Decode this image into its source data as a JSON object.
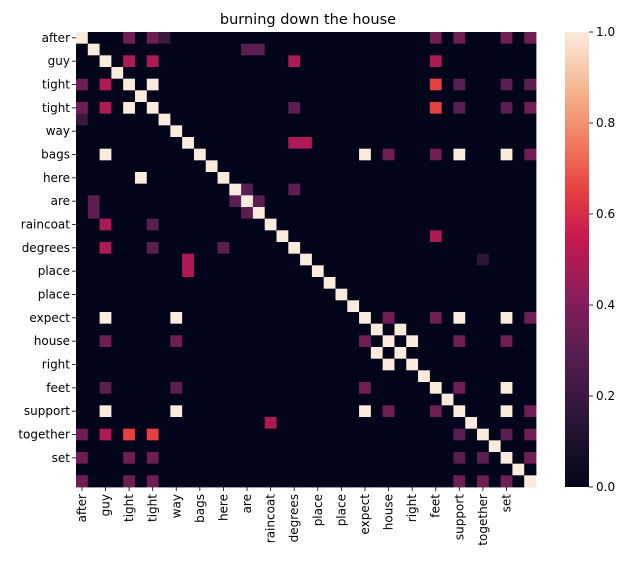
{
  "chart_data": {
    "type": "heatmap",
    "title": "burning down the house",
    "xlabel": "",
    "ylabel": "",
    "row_labels": [
      "after",
      "guy",
      "tight",
      "tight",
      "way",
      "bags",
      "here",
      "are",
      "raincoat",
      "degrees",
      "place",
      "place",
      "expect",
      "house",
      "right",
      "feet",
      "support",
      "together",
      "set"
    ],
    "col_labels": [
      "after",
      "guy",
      "tight",
      "tight",
      "way",
      "bags",
      "here",
      "are",
      "raincoat",
      "degrees",
      "place",
      "place",
      "expect",
      "house",
      "right",
      "feet",
      "support",
      "together",
      "set"
    ],
    "tokens": [
      "after",
      "",
      "guy",
      "",
      "tight",
      "",
      "tight",
      "",
      "way",
      "",
      "bags",
      "",
      "here",
      "",
      "are",
      "",
      "raincoat",
      "",
      "degrees",
      "",
      "place",
      "",
      "place",
      "",
      "expect",
      "",
      "house",
      "",
      "right",
      "",
      "feet",
      "",
      "support",
      "",
      "together",
      "",
      "set"
    ],
    "label_every": 2,
    "matrix": [
      [
        1,
        0,
        0,
        0,
        0.35,
        0,
        0.35,
        0.2,
        0,
        0,
        0,
        0,
        0,
        0,
        0,
        0,
        0,
        0,
        0,
        0,
        0,
        0,
        0,
        0,
        0,
        0,
        0,
        0,
        0,
        0,
        0.35,
        0,
        0.35,
        0,
        0,
        0,
        0.35,
        0,
        0.35
      ],
      [
        0,
        1,
        0,
        0,
        0,
        0,
        0,
        0,
        0,
        0,
        0,
        0,
        0,
        0,
        0.3,
        0.3,
        0,
        0,
        0,
        0,
        0,
        0,
        0,
        0,
        0,
        0,
        0,
        0,
        0,
        0,
        0,
        0,
        0,
        0,
        0,
        0,
        0,
        0,
        0
      ],
      [
        0,
        0,
        1,
        0,
        0.5,
        0,
        0.5,
        0,
        0,
        0,
        0,
        0,
        0,
        0,
        0,
        0,
        0,
        0,
        0.5,
        0,
        0,
        0,
        0,
        0,
        0,
        0,
        0,
        0,
        0,
        0,
        0.5,
        0,
        0,
        0,
        0,
        0,
        0,
        0,
        0
      ],
      [
        0,
        0,
        0,
        1,
        0,
        0,
        0,
        0,
        0,
        0,
        0,
        0,
        0,
        0,
        0,
        0,
        0,
        0,
        0,
        0,
        0,
        0,
        0,
        0,
        0,
        0,
        0,
        0,
        0,
        0,
        0,
        0,
        0,
        0,
        0,
        0,
        0,
        0,
        0
      ],
      [
        0.35,
        0,
        0.5,
        0,
        1,
        0,
        1,
        0,
        0,
        0,
        0,
        0,
        0,
        0,
        0,
        0,
        0,
        0,
        0,
        0,
        0,
        0,
        0,
        0,
        0,
        0,
        0,
        0,
        0,
        0,
        0.65,
        0,
        0.3,
        0,
        0,
        0,
        0.3,
        0,
        0.3
      ],
      [
        0,
        0,
        0,
        0,
        0,
        1,
        0,
        0,
        0,
        0,
        0,
        0,
        0,
        0,
        0,
        0,
        0,
        0,
        0,
        0,
        0,
        0,
        0,
        0,
        0,
        0,
        0,
        0,
        0,
        0,
        0,
        0,
        0,
        0,
        0,
        0,
        0,
        0,
        0
      ],
      [
        0.35,
        0,
        0.5,
        0,
        1,
        0,
        1,
        0,
        0,
        0,
        0,
        0,
        0,
        0,
        0,
        0,
        0,
        0,
        0.3,
        0,
        0,
        0,
        0,
        0,
        0,
        0,
        0,
        0,
        0,
        0,
        0.65,
        0,
        0.3,
        0,
        0,
        0,
        0.3,
        0,
        0.35
      ],
      [
        0.2,
        0,
        0,
        0,
        0,
        0,
        0,
        1,
        0,
        0,
        0,
        0,
        0,
        0,
        0,
        0,
        0,
        0,
        0,
        0,
        0,
        0,
        0,
        0,
        0,
        0,
        0,
        0,
        0,
        0,
        0,
        0,
        0,
        0,
        0,
        0,
        0,
        0,
        0
      ],
      [
        0,
        0,
        0,
        0,
        0,
        0,
        0,
        0,
        1,
        0,
        0,
        0,
        0,
        0,
        0,
        0,
        0,
        0,
        0,
        0,
        0,
        0,
        0,
        0,
        0,
        0,
        0,
        0,
        0,
        0,
        0,
        0,
        0,
        0,
        0,
        0,
        0,
        0,
        0
      ],
      [
        0,
        0,
        0,
        0,
        0,
        0,
        0,
        0,
        0,
        1,
        0,
        0,
        0,
        0,
        0,
        0,
        0,
        0,
        0.5,
        0.5,
        0,
        0,
        0,
        0,
        0,
        0,
        0,
        0,
        0,
        0,
        0,
        0,
        0,
        0,
        0,
        0,
        0,
        0,
        0
      ],
      [
        0,
        0,
        1,
        0,
        0,
        0,
        0,
        0,
        0,
        0,
        1,
        0,
        0,
        0,
        0,
        0,
        0,
        0,
        0,
        0,
        0,
        0,
        0,
        0,
        1,
        0,
        0.35,
        0,
        0,
        0,
        0.35,
        0,
        1,
        0,
        0,
        0,
        1,
        0,
        0.35
      ],
      [
        0,
        0,
        0,
        0,
        0,
        0,
        0,
        0,
        0,
        0,
        0,
        1,
        0,
        0,
        0,
        0,
        0,
        0,
        0,
        0,
        0,
        0,
        0,
        0,
        0,
        0,
        0,
        0,
        0,
        0,
        0,
        0,
        0,
        0,
        0,
        0,
        0,
        0,
        0
      ],
      [
        0,
        0,
        0,
        0,
        0,
        1,
        0,
        0,
        0,
        0,
        0,
        0,
        1,
        0,
        0,
        0,
        0,
        0,
        0,
        0,
        0,
        0,
        0,
        0,
        0,
        0,
        0,
        0,
        0,
        0,
        0,
        0,
        0,
        0,
        0,
        0,
        0,
        0,
        0
      ],
      [
        0,
        0,
        0,
        0,
        0,
        0,
        0,
        0,
        0,
        0,
        0,
        0,
        0,
        1,
        0.3,
        0,
        0,
        0,
        0.3,
        0,
        0,
        0,
        0,
        0,
        0,
        0,
        0,
        0,
        0,
        0,
        0,
        0,
        0,
        0,
        0,
        0,
        0,
        0,
        0
      ],
      [
        0,
        0.3,
        0,
        0,
        0,
        0,
        0,
        0,
        0,
        0,
        0,
        0,
        0,
        0.3,
        1,
        0.3,
        0,
        0,
        0,
        0,
        0,
        0,
        0,
        0,
        0,
        0,
        0,
        0,
        0,
        0,
        0,
        0,
        0,
        0,
        0,
        0,
        0,
        0,
        0
      ],
      [
        0,
        0.3,
        0,
        0,
        0,
        0,
        0,
        0,
        0,
        0,
        0,
        0,
        0,
        0,
        0.3,
        1,
        0,
        0,
        0,
        0,
        0,
        0,
        0,
        0,
        0,
        0,
        0,
        0,
        0,
        0,
        0,
        0,
        0,
        0,
        0,
        0,
        0,
        0,
        0
      ],
      [
        0,
        0,
        0.5,
        0,
        0,
        0,
        0.3,
        0,
        0,
        0,
        0,
        0,
        0,
        0,
        0,
        0,
        1,
        0,
        0,
        0,
        0,
        0,
        0,
        0,
        0,
        0,
        0,
        0,
        0,
        0,
        0,
        0,
        0,
        0,
        0,
        0,
        0,
        0,
        0
      ],
      [
        0,
        0,
        0,
        0,
        0,
        0,
        0,
        0,
        0,
        0,
        0,
        0,
        0,
        0,
        0,
        0,
        0,
        1,
        0,
        0,
        0,
        0,
        0,
        0,
        0,
        0,
        0,
        0,
        0,
        0,
        0.5,
        0,
        0,
        0,
        0,
        0,
        0,
        0,
        0
      ],
      [
        0,
        0,
        0.5,
        0,
        0,
        0,
        0.3,
        0,
        0,
        0,
        0,
        0,
        0.3,
        0,
        0,
        0,
        0,
        0,
        1,
        0,
        0,
        0,
        0,
        0,
        0,
        0,
        0,
        0,
        0,
        0,
        0,
        0,
        0,
        0,
        0,
        0,
        0,
        0,
        0
      ],
      [
        0,
        0,
        0,
        0,
        0,
        0,
        0,
        0,
        0,
        0.5,
        0,
        0,
        0,
        0,
        0,
        0,
        0,
        0,
        0,
        1,
        0,
        0,
        0,
        0,
        0,
        0,
        0,
        0,
        0,
        0,
        0,
        0,
        0,
        0,
        0.15,
        0,
        0,
        0,
        0
      ],
      [
        0,
        0,
        0,
        0,
        0,
        0,
        0,
        0,
        0,
        0.5,
        0,
        0,
        0,
        0,
        0,
        0,
        0,
        0,
        0,
        0,
        1,
        0,
        0,
        0,
        0,
        0,
        0,
        0,
        0,
        0,
        0,
        0,
        0,
        0,
        0,
        0,
        0,
        0,
        0
      ],
      [
        0,
        0,
        0,
        0,
        0,
        0,
        0,
        0,
        0,
        0,
        0,
        0,
        0,
        0,
        0,
        0,
        0,
        0,
        0,
        0,
        0,
        1,
        0,
        0,
        0,
        0,
        0,
        0,
        0,
        0,
        0,
        0,
        0,
        0,
        0,
        0,
        0,
        0,
        0
      ],
      [
        0,
        0,
        0,
        0,
        0,
        0,
        0,
        0,
        0,
        0,
        0,
        0,
        0,
        0,
        0,
        0,
        0,
        0,
        0,
        0,
        0,
        0,
        1,
        0,
        0,
        0,
        0,
        0,
        0,
        0,
        0,
        0,
        0,
        0,
        0,
        0,
        0,
        0,
        0
      ],
      [
        0,
        0,
        0,
        0,
        0,
        0,
        0,
        0,
        0,
        0,
        0,
        0,
        0,
        0,
        0,
        0,
        0,
        0,
        0,
        0,
        0,
        0,
        0,
        1,
        0,
        0,
        0,
        0,
        0,
        0,
        0,
        0,
        0,
        0,
        0,
        0,
        0,
        0,
        0
      ],
      [
        0,
        0,
        1,
        0,
        0,
        0,
        0,
        0,
        1,
        0,
        0,
        0,
        0,
        0,
        0,
        0,
        0,
        0,
        0,
        0,
        0,
        0,
        0,
        0,
        1,
        0,
        0.35,
        0,
        0,
        0,
        0.35,
        0,
        1,
        0,
        0,
        0,
        1,
        0,
        0.35
      ],
      [
        0,
        0,
        0,
        0,
        0,
        0,
        0,
        0,
        0,
        0,
        0,
        0,
        0,
        0,
        0,
        0,
        0,
        0,
        0,
        0,
        0,
        0,
        0,
        0,
        0,
        1,
        0,
        1,
        0,
        0,
        0,
        0,
        0,
        0,
        0,
        0,
        0,
        0,
        0
      ],
      [
        0,
        0,
        0.35,
        0,
        0,
        0,
        0,
        0,
        0.35,
        0,
        0,
        0,
        0,
        0,
        0,
        0,
        0,
        0,
        0,
        0,
        0,
        0,
        0,
        0,
        0.35,
        0,
        1,
        0,
        1,
        0,
        0,
        0,
        0.35,
        0,
        0,
        0,
        0.35,
        0,
        0
      ],
      [
        0,
        0,
        0,
        0,
        0,
        0,
        0,
        0,
        0,
        0,
        0,
        0,
        0,
        0,
        0,
        0,
        0,
        0,
        0,
        0,
        0,
        0,
        0,
        0,
        0,
        1,
        0,
        1,
        0,
        0,
        0,
        0,
        0,
        0,
        0,
        0,
        0,
        0,
        0
      ],
      [
        0,
        0,
        0,
        0,
        0,
        0,
        0,
        0,
        0,
        0,
        0,
        0,
        0,
        0,
        0,
        0,
        0,
        0,
        0,
        0,
        0,
        0,
        0,
        0,
        0,
        0,
        1,
        0,
        1,
        0,
        0,
        0,
        0,
        0,
        0,
        0,
        0,
        0,
        0
      ],
      [
        0,
        0,
        0,
        0,
        0,
        0,
        0,
        0,
        0,
        0,
        0,
        0,
        0,
        0,
        0,
        0,
        0,
        0,
        0,
        0,
        0,
        0,
        0,
        0,
        0,
        0,
        0,
        0,
        0,
        1,
        0,
        0,
        0,
        0,
        0,
        0,
        0,
        0,
        0
      ],
      [
        0,
        0,
        0.3,
        0,
        0,
        0,
        0,
        0,
        0.3,
        0,
        0,
        0,
        0,
        0,
        0,
        0,
        0,
        0,
        0,
        0,
        0,
        0,
        0,
        0,
        0.35,
        0,
        0,
        0,
        0,
        0,
        1,
        0,
        0.35,
        0,
        0,
        0,
        1,
        0,
        0
      ],
      [
        0,
        0,
        0,
        0,
        0,
        0,
        0,
        0,
        0,
        0,
        0,
        0,
        0,
        0,
        0,
        0,
        0,
        0,
        0,
        0,
        0,
        0,
        0,
        0,
        0,
        0,
        0,
        0,
        0,
        0,
        0,
        1,
        0,
        0,
        0,
        0,
        0,
        0,
        0
      ],
      [
        0,
        0,
        1,
        0,
        0,
        0,
        0,
        0,
        1,
        0,
        0,
        0,
        0,
        0,
        0,
        0,
        0,
        0,
        0,
        0,
        0,
        0,
        0,
        0,
        1,
        0,
        0.35,
        0,
        0,
        0,
        0.35,
        0,
        1,
        0,
        0,
        0,
        1,
        0,
        0.35
      ],
      [
        0,
        0,
        0,
        0,
        0,
        0,
        0,
        0,
        0,
        0,
        0,
        0,
        0,
        0,
        0,
        0,
        0.5,
        0,
        0,
        0,
        0,
        0,
        0,
        0,
        0,
        0,
        0,
        0,
        0,
        0,
        0,
        0,
        0,
        1,
        0,
        0,
        0,
        0,
        0
      ],
      [
        0.35,
        0,
        0.5,
        0,
        0.65,
        0,
        0.65,
        0,
        0,
        0,
        0,
        0,
        0,
        0,
        0,
        0,
        0,
        0,
        0,
        0,
        0,
        0,
        0,
        0,
        0,
        0,
        0,
        0,
        0,
        0,
        0,
        0,
        0.3,
        0,
        1,
        0,
        0.3,
        0,
        0.35
      ],
      [
        0,
        0,
        0,
        0,
        0,
        0,
        0,
        0,
        0,
        0,
        0,
        0,
        0,
        0,
        0,
        0,
        0,
        0,
        0,
        0,
        0,
        0,
        0,
        0,
        0,
        0,
        0,
        0,
        0,
        0,
        0,
        0,
        0,
        0,
        0,
        1,
        0,
        0,
        0
      ],
      [
        0.35,
        0,
        0,
        0,
        0.35,
        0,
        0.35,
        0,
        0,
        0,
        0,
        0,
        0,
        0,
        0,
        0,
        0,
        0,
        0,
        0,
        0,
        0,
        0,
        0,
        0,
        0,
        0,
        0,
        0,
        0,
        0,
        0,
        0.3,
        0,
        0.3,
        0,
        1,
        0,
        0.35
      ],
      [
        0,
        0,
        0,
        0,
        0,
        0,
        0,
        0,
        0,
        0,
        0,
        0,
        0,
        0,
        0,
        0,
        0,
        0,
        0,
        0,
        0,
        0,
        0,
        0,
        0,
        0,
        0,
        0,
        0,
        0,
        0,
        0,
        0,
        0,
        0,
        0,
        0,
        1,
        0
      ],
      [
        0.35,
        0,
        0,
        0,
        0.35,
        0,
        0.35,
        0,
        0,
        0,
        0,
        0,
        0,
        0,
        0,
        0,
        0,
        0,
        0,
        0,
        0,
        0,
        0,
        0,
        0,
        0,
        0,
        0,
        0,
        0,
        0,
        0,
        0.35,
        0,
        0.35,
        0,
        0.35,
        0,
        1
      ]
    ],
    "colorbar": {
      "min": 0.0,
      "max": 1.0,
      "ticks": [
        "0.0",
        "0.2",
        "0.4",
        "0.6",
        "0.8",
        "1.0"
      ]
    },
    "colormap": "rocket",
    "grid": false,
    "legend": "colorbar-right"
  }
}
